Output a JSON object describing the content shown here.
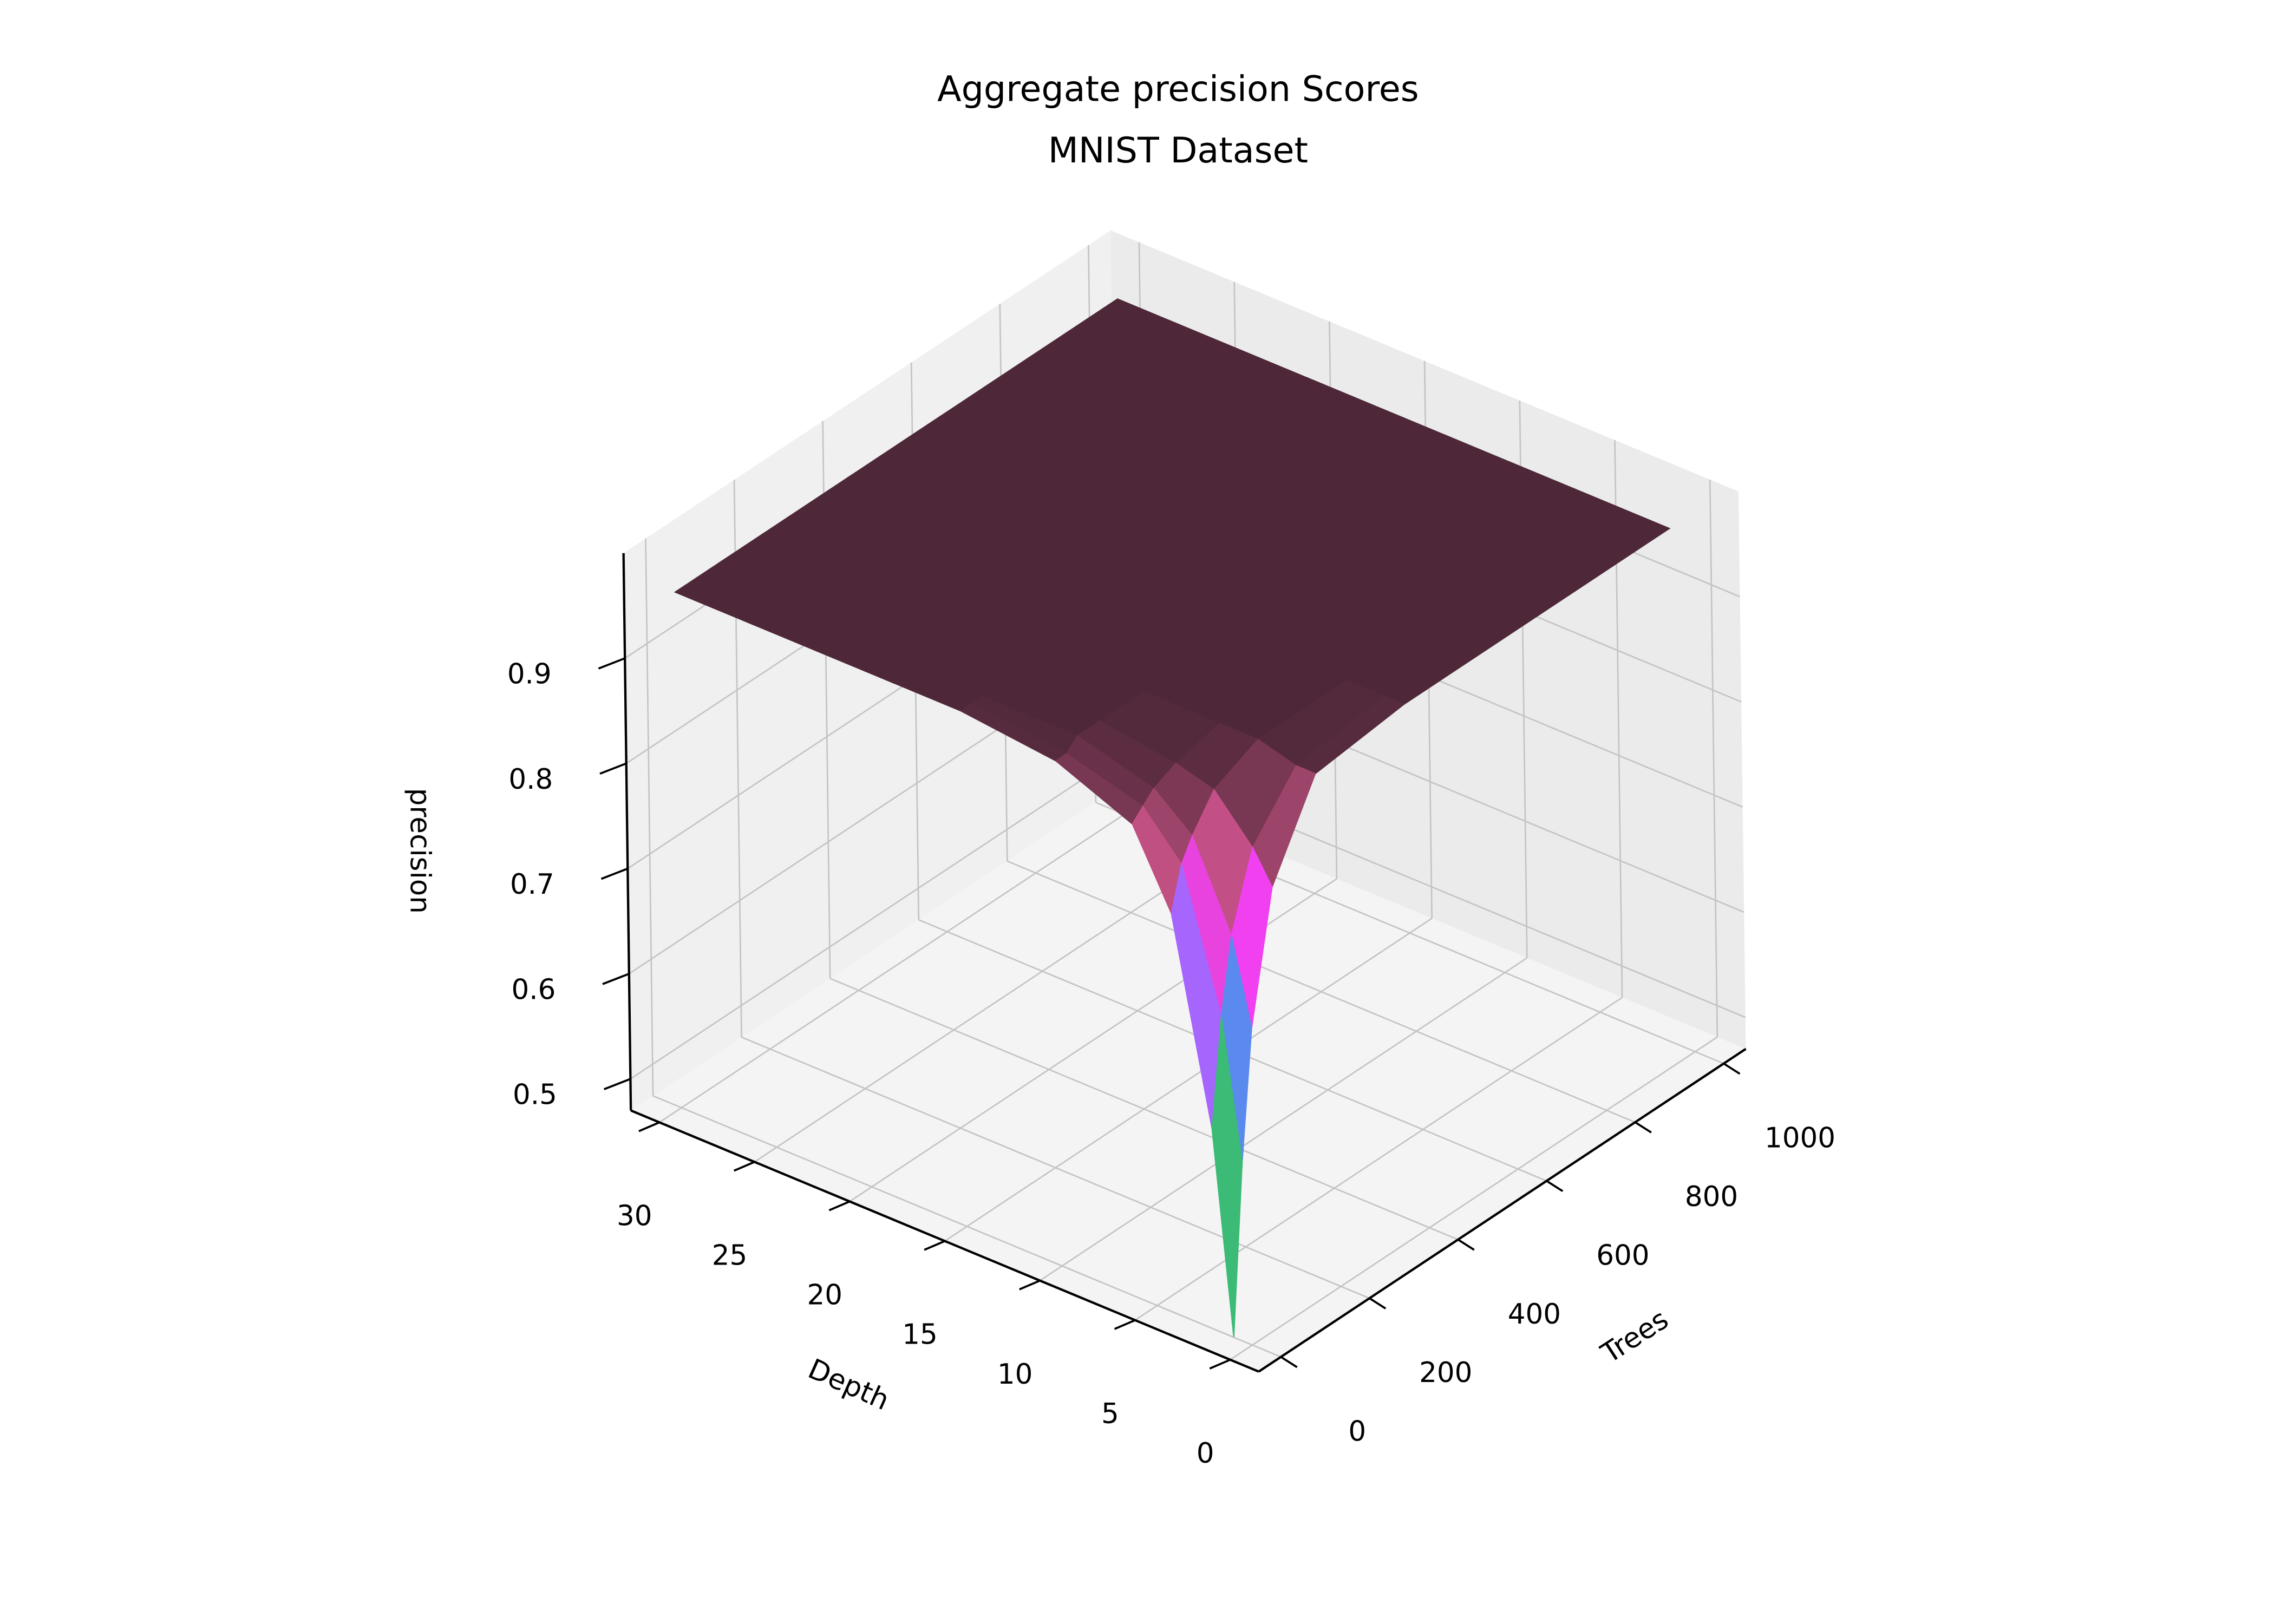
{
  "chart_data": {
    "type": "surface3d",
    "title": "Aggregate precision Scores",
    "subtitle": "MNIST Dataset",
    "x_label": "Trees",
    "y_label": "Depth",
    "z_label": "precision",
    "x": [
      1,
      25,
      50,
      100,
      200,
      400,
      600,
      800,
      1000
    ],
    "y": [
      1,
      2,
      4,
      6,
      10,
      15,
      20,
      25,
      30
    ],
    "z": [
      [
        0.47,
        0.63,
        0.75,
        0.87,
        0.95,
        0.96,
        0.96,
        0.96,
        0.96
      ],
      [
        0.66,
        0.76,
        0.83,
        0.9,
        0.95,
        0.96,
        0.96,
        0.96,
        0.96
      ],
      [
        0.85,
        0.89,
        0.91,
        0.94,
        0.96,
        0.96,
        0.96,
        0.96,
        0.96
      ],
      [
        0.92,
        0.93,
        0.94,
        0.95,
        0.96,
        0.96,
        0.96,
        0.96,
        0.96
      ],
      [
        0.95,
        0.95,
        0.96,
        0.96,
        0.96,
        0.96,
        0.96,
        0.96,
        0.96
      ],
      [
        0.96,
        0.96,
        0.96,
        0.96,
        0.96,
        0.96,
        0.96,
        0.96,
        0.96
      ],
      [
        0.96,
        0.96,
        0.96,
        0.96,
        0.96,
        0.96,
        0.96,
        0.96,
        0.96
      ],
      [
        0.96,
        0.96,
        0.96,
        0.96,
        0.96,
        0.96,
        0.96,
        0.96,
        0.96
      ],
      [
        0.96,
        0.96,
        0.96,
        0.96,
        0.96,
        0.96,
        0.96,
        0.96,
        0.96
      ]
    ],
    "xlim": [
      -50,
      1050
    ],
    "ylim": [
      -1.5,
      31.5
    ],
    "zlim": [
      0.47,
      1.0
    ],
    "xticks": [
      0,
      200,
      400,
      600,
      800,
      1000
    ],
    "yticks": [
      0,
      5,
      10,
      15,
      20,
      25,
      30
    ],
    "zticks": [
      0.5,
      0.6,
      0.7,
      0.8,
      0.9
    ],
    "grid": true,
    "colormap": [
      "#ff5555",
      "#c8b020",
      "#66c030",
      "#20b8a0",
      "#30a0e0",
      "#9070ff",
      "#f040f0",
      "#c05080",
      "#4e2838"
    ]
  }
}
